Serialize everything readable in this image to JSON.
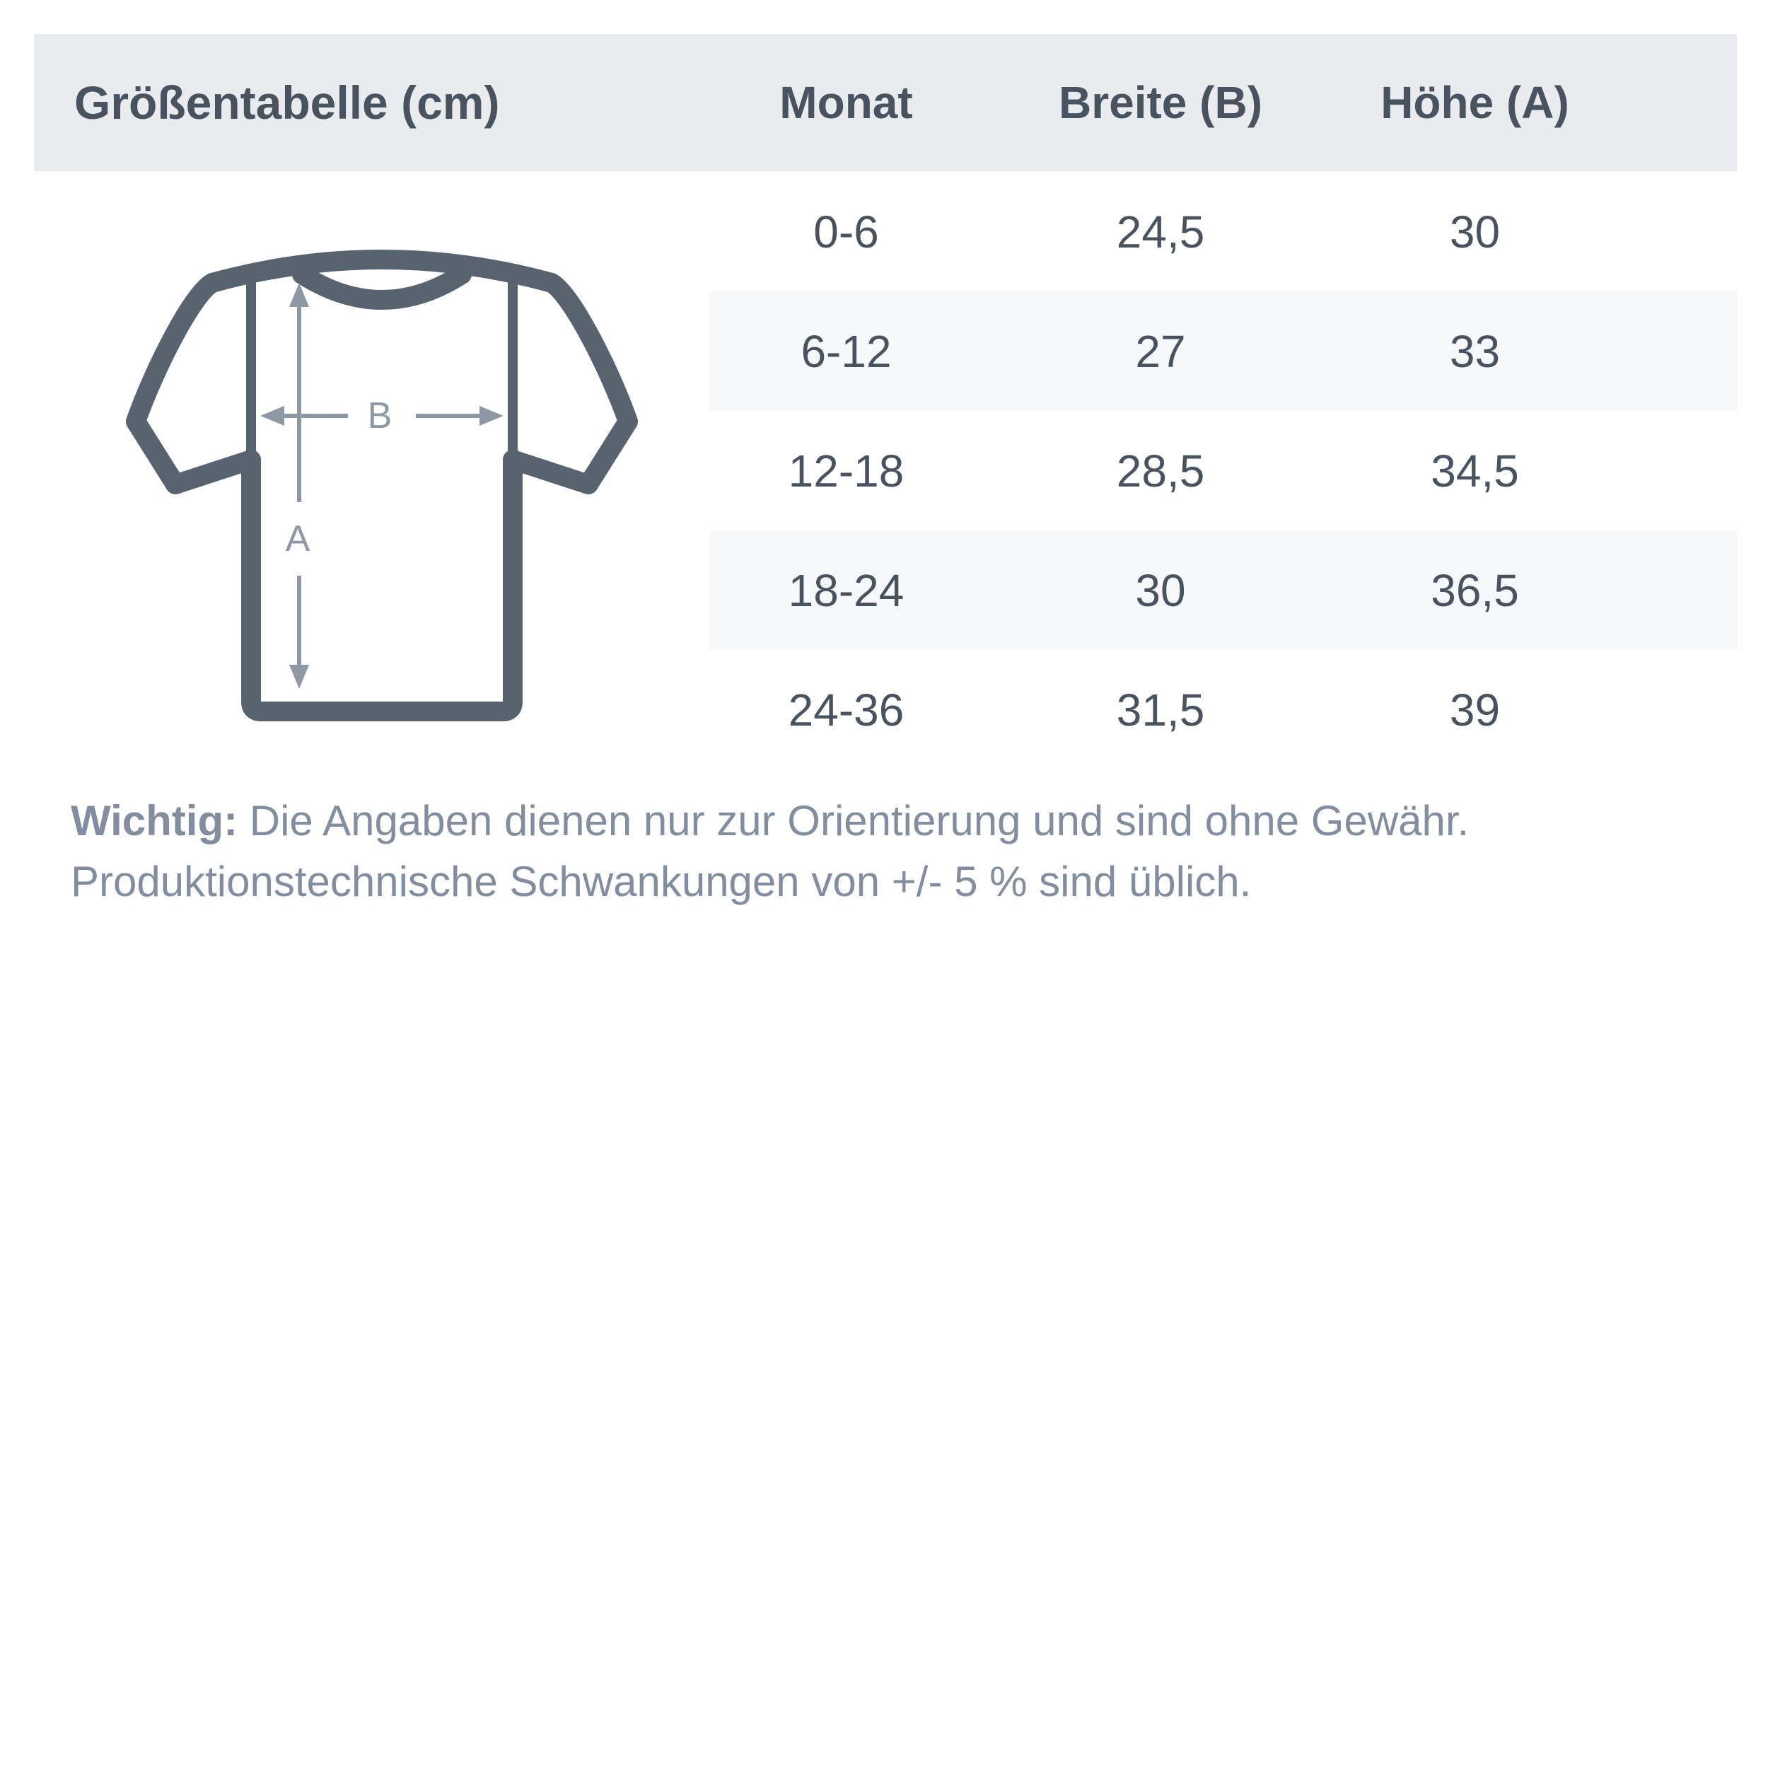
{
  "title": "Größentabelle (cm)",
  "columns": [
    "Monat",
    "Breite (B)",
    "Höhe (A)"
  ],
  "rows": [
    {
      "monat": "0-6",
      "breite": "24,5",
      "hoehe": "30"
    },
    {
      "monat": "6-12",
      "breite": "27",
      "hoehe": "33"
    },
    {
      "monat": "12-18",
      "breite": "28,5",
      "hoehe": "34,5"
    },
    {
      "monat": "18-24",
      "breite": "30",
      "hoehe": "36,5"
    },
    {
      "monat": "24-36",
      "breite": "31,5",
      "hoehe": "39"
    }
  ],
  "diagram": {
    "width_label": "B",
    "height_label": "A"
  },
  "note": {
    "label": "Wichtig:",
    "line1": " Die Angaben dienen nur zur Orientierung und sind ohne Gewähr.",
    "line2": "Produktionstechnische Schwankungen von +/- 5 % sind üblich."
  },
  "colors": {
    "text": "#49535f",
    "band": "#e9ebee",
    "stripe": "#f7f8fa",
    "shirt": "#57636e",
    "arrow": "#8e98a4",
    "note": "#828da0"
  },
  "chart_data": {
    "type": "table",
    "title": "Größentabelle (cm)",
    "units": "cm",
    "columns": [
      "Monat",
      "Breite (B)",
      "Höhe (A)"
    ],
    "rows": [
      [
        "0-6",
        24.5,
        30
      ],
      [
        "6-12",
        27,
        33
      ],
      [
        "12-18",
        28.5,
        34.5
      ],
      [
        "18-24",
        30,
        36.5
      ],
      [
        "24-36",
        31.5,
        39
      ]
    ],
    "notes": "Wichtig: Die Angaben dienen nur zur Orientierung und sind ohne Gewähr. Produktionstechnische Schwankungen von +/- 5 % sind üblich."
  }
}
